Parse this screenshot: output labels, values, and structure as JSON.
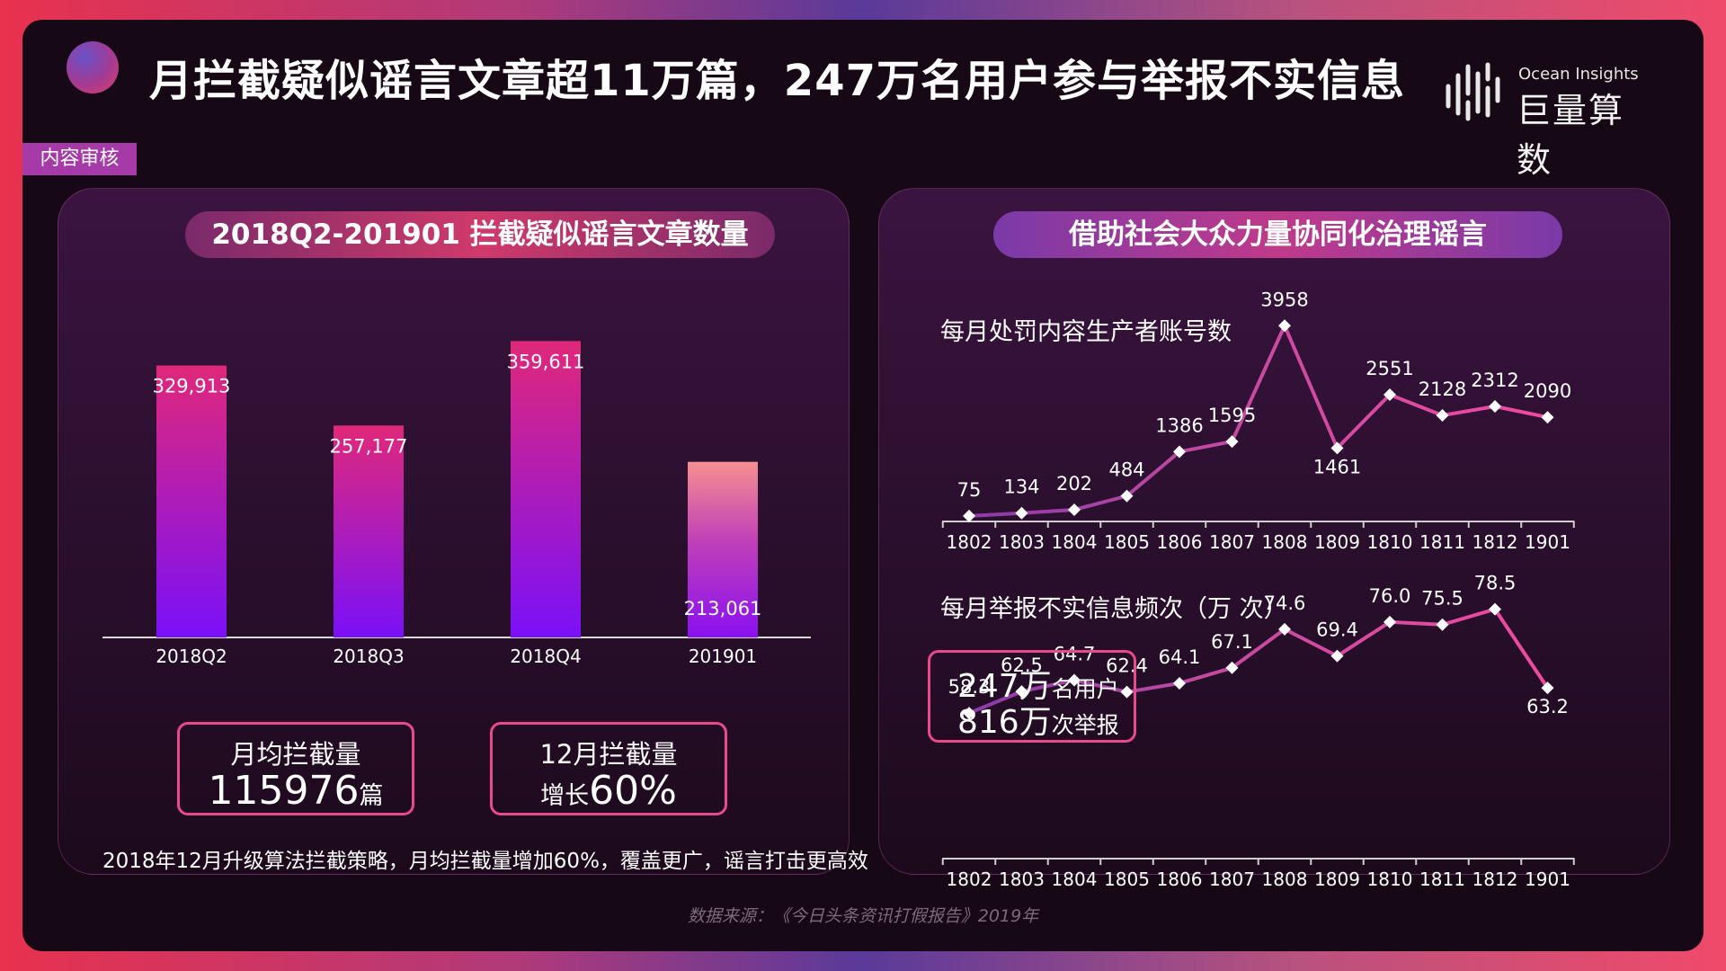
{
  "header": {
    "title": "月拦截疑似谣言文章超11万篇，247万名用户参与举报不实信息",
    "logo_en": "Ocean Insights",
    "logo_cn": "巨量算数",
    "section_tag": "内容审核"
  },
  "left_panel": {
    "title": "2018Q2-201901 拦截疑似谣言文章数量",
    "stats": [
      {
        "label": "月均拦截量",
        "value": "115976",
        "unit": "篇"
      },
      {
        "label": "12月拦截量",
        "prefix": "增长",
        "value": "60%"
      }
    ],
    "note": "2018年12月升级算法拦截策略，月均拦截量增加60%，覆盖更广，谣言打击更高效"
  },
  "right_panel": {
    "title": "借助社会大众力量协同化治理谣言",
    "chart1_title": "每月处罚内容生产者账号数",
    "chart2_title": "每月举报不实信息频次（万 次）",
    "highlight": {
      "line1_num": "247万",
      "line1_text": "名用户",
      "line2_num": "816万",
      "line2_text": "次举报"
    }
  },
  "source": "数据来源：《今日头条资讯打假报告》2019年",
  "colors": {
    "bar_top": "#e0287a",
    "bar_bottom": "#7a10f8",
    "line": "#f04aa0",
    "line_start": "#8a3aa8",
    "accent": "#e84a8a"
  },
  "chart_data": [
    {
      "type": "bar",
      "categories": [
        "2018Q2",
        "2018Q3",
        "2018Q4",
        "201901"
      ],
      "values": [
        329913,
        257177,
        359611,
        213061
      ],
      "labels": [
        "329,913",
        "257,177",
        "359,611",
        "213,061"
      ],
      "ylim": [
        0,
        400000
      ]
    },
    {
      "type": "line",
      "categories": [
        "1802",
        "1803",
        "1804",
        "1805",
        "1806",
        "1807",
        "1808",
        "1809",
        "1810",
        "1811",
        "1812",
        "1901"
      ],
      "values": [
        75,
        134,
        202,
        484,
        1386,
        1595,
        3958,
        1461,
        2551,
        2128,
        2312,
        2090
      ],
      "ylim": [
        0,
        4000
      ]
    },
    {
      "type": "line",
      "categories": [
        "1802",
        "1803",
        "1804",
        "1805",
        "1806",
        "1807",
        "1808",
        "1809",
        "1810",
        "1811",
        "1812",
        "1901"
      ],
      "values": [
        58.3,
        62.5,
        64.7,
        62.4,
        64.1,
        67.1,
        74.6,
        69.4,
        76.0,
        75.5,
        78.5,
        63.2
      ],
      "labels": [
        "58.3",
        "62.5",
        "64.7",
        "62.4",
        "64.1",
        "67.1",
        "74.6",
        "69.4",
        "76.0",
        "75.5",
        "78.5",
        "63.2"
      ],
      "ylim": [
        30,
        80
      ]
    }
  ]
}
